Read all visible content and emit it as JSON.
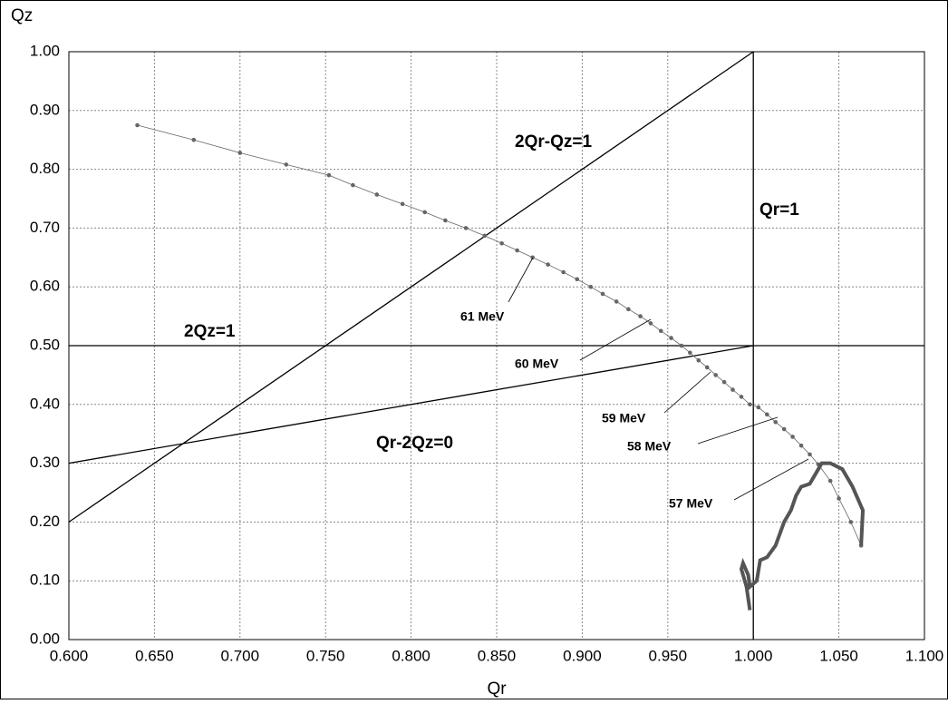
{
  "chart_data": {
    "type": "line",
    "xlabel": "Qr",
    "ylabel": "Qz",
    "xlim": [
      0.6,
      1.1
    ],
    "xticks": [
      {
        "value": 0.6,
        "label": "0.600"
      },
      {
        "value": 0.65,
        "label": "0.650"
      },
      {
        "value": 0.7,
        "label": "0.700"
      },
      {
        "value": 0.75,
        "label": "0.750"
      },
      {
        "value": 0.8,
        "label": "0.800"
      },
      {
        "value": 0.85,
        "label": "0.850"
      },
      {
        "value": 0.9,
        "label": "0.900"
      },
      {
        "value": 0.95,
        "label": "0.950"
      },
      {
        "value": 1.0,
        "label": "1.000"
      },
      {
        "value": 1.05,
        "label": "1.050"
      },
      {
        "value": 1.1,
        "label": "1.100"
      }
    ],
    "ylim": [
      0,
      1
    ],
    "yticks": [
      {
        "value": 0,
        "label": "0.00"
      },
      {
        "value": 0.1,
        "label": "0.10"
      },
      {
        "value": 0.2,
        "label": "0.20"
      },
      {
        "value": 0.3,
        "label": "0.30"
      },
      {
        "value": 0.4,
        "label": "0.40"
      },
      {
        "value": 0.5,
        "label": "0.50"
      },
      {
        "value": 0.6,
        "label": "0.60"
      },
      {
        "value": 0.7,
        "label": "0.70"
      },
      {
        "value": 0.8,
        "label": "0.80"
      },
      {
        "value": 0.9,
        "label": "0.90"
      },
      {
        "value": 1.0,
        "label": "1.00"
      }
    ],
    "grid": true,
    "series": [
      {
        "color": "#000000",
        "x": [
          0.6,
          1.0
        ],
        "values": [
          0.2,
          1.0
        ]
      },
      {
        "color": "#000000",
        "x": [
          1.0,
          1.0
        ],
        "values": [
          0.0,
          1.0
        ]
      },
      {
        "color": "#000000",
        "x": [
          0.6,
          1.1
        ],
        "values": [
          0.5,
          0.5
        ]
      },
      {
        "color": "#000000",
        "x": [
          0.6,
          1.0
        ],
        "values": [
          0.3,
          0.5
        ]
      },
      {
        "color": "#666666",
        "marker": true,
        "x": [
          0.64,
          0.673,
          0.7,
          0.727,
          0.752,
          0.766,
          0.78,
          0.795,
          0.808,
          0.82,
          0.832,
          0.843,
          0.853,
          0.862,
          0.871,
          0.88,
          0.889,
          0.897,
          0.905,
          0.912,
          0.92,
          0.927,
          0.934,
          0.94,
          0.946,
          0.952,
          0.958,
          0.963,
          0.968,
          0.973,
          0.978,
          0.983,
          0.988,
          0.993,
          0.998,
          1.003,
          1.008,
          1.013,
          1.018,
          1.023,
          1.028,
          1.033,
          1.038,
          1.045,
          1.05,
          1.057,
          1.063
        ],
        "values": [
          0.875,
          0.85,
          0.828,
          0.808,
          0.79,
          0.773,
          0.757,
          0.741,
          0.727,
          0.713,
          0.7,
          0.687,
          0.674,
          0.662,
          0.65,
          0.638,
          0.625,
          0.613,
          0.6,
          0.588,
          0.575,
          0.562,
          0.55,
          0.538,
          0.525,
          0.513,
          0.5,
          0.488,
          0.475,
          0.463,
          0.45,
          0.438,
          0.425,
          0.413,
          0.4,
          0.395,
          0.383,
          0.37,
          0.358,
          0.345,
          0.33,
          0.315,
          0.298,
          0.27,
          0.24,
          0.2,
          0.16
        ]
      },
      {
        "color": "#555555",
        "thick": true,
        "x": [
          1.063,
          1.064,
          1.058,
          1.052,
          1.045,
          1.04,
          1.036,
          1.033,
          1.028,
          1.025,
          1.022,
          1.018,
          1.013,
          1.008,
          1.004,
          1.002,
          0.998,
          0.997,
          0.994,
          0.993,
          0.996,
          0.998
        ],
        "values": [
          0.16,
          0.22,
          0.26,
          0.29,
          0.3,
          0.3,
          0.28,
          0.265,
          0.26,
          0.245,
          0.22,
          0.2,
          0.16,
          0.14,
          0.135,
          0.1,
          0.09,
          0.11,
          0.13,
          0.12,
          0.09,
          0.05
        ]
      }
    ],
    "annotations": [
      "2Qr-Qz=1",
      "Qr=1",
      "2Qz=1",
      "Qr-2Qz=0",
      "61 MeV",
      "60 MeV",
      "59 MeV",
      "58 MeV",
      "57 MeV"
    ]
  }
}
